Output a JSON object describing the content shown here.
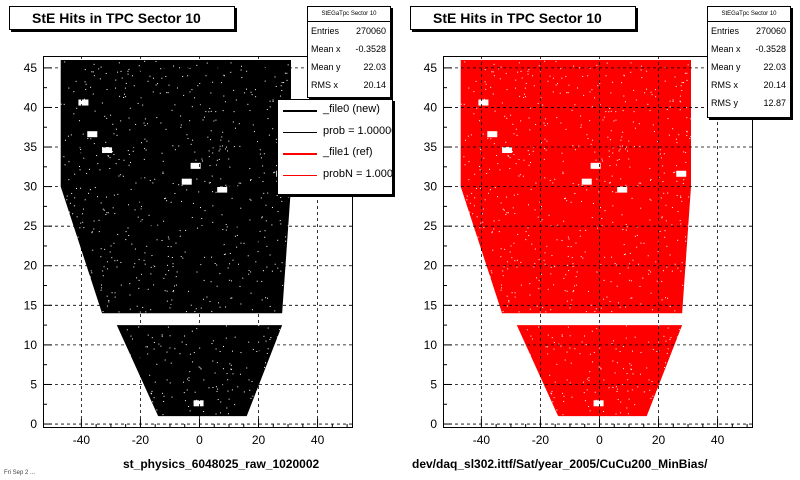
{
  "chart_data": [
    {
      "type": "scatter",
      "title": "StE Hits in TPC Sector 10",
      "xlabel": "st_physics_6048025_raw_1020002",
      "ylabel": "",
      "xlim": [
        -53,
        52
      ],
      "ylim": [
        -0.5,
        46.5
      ],
      "x_ticks": [
        -40,
        -20,
        0,
        20,
        40
      ],
      "y_ticks": [
        0,
        5,
        10,
        15,
        20,
        25,
        30,
        35,
        40,
        45
      ],
      "grid": true,
      "marker_color": "#000000",
      "stats": {
        "header": "StEGaTpc Sector 10",
        "rows": [
          {
            "key": "Entries",
            "value": "270060"
          },
          {
            "key": "Mean x",
            "value": "-0.3528"
          },
          {
            "key": "Mean y",
            "value": "22.03"
          },
          {
            "key": "RMS x",
            "value": "20.14"
          }
        ]
      },
      "legend": {
        "placement": "top-right",
        "entries": [
          {
            "label": "_file0 (new)",
            "color": "#000000"
          },
          {
            "label": "prob = 1.000000",
            "color": "#000000"
          },
          {
            "label": "_file1 (ref)",
            "color": "#ff0000"
          },
          {
            "label": "probN = 1.000000",
            "color": "#ff0000"
          }
        ]
      }
    },
    {
      "type": "scatter",
      "title": "StE Hits in TPC Sector 10",
      "xlabel": "dev/daq_sl302.ittf/Sat/year_2005/CuCu200_MinBias/",
      "ylabel": "",
      "xlim": [
        -53,
        52
      ],
      "ylim": [
        -0.5,
        46.5
      ],
      "x_ticks": [
        -40,
        -20,
        0,
        20,
        40
      ],
      "y_ticks": [
        0,
        5,
        10,
        15,
        20,
        25,
        30,
        35,
        40,
        45
      ],
      "grid": true,
      "marker_color": "#ff0000",
      "stats": {
        "header": "StEGaTpc Sector 10",
        "rows": [
          {
            "key": "Entries",
            "value": "270060"
          },
          {
            "key": "Mean x",
            "value": "-0.3528"
          },
          {
            "key": "Mean y",
            "value": "22.03"
          },
          {
            "key": "RMS x",
            "value": "20.14"
          },
          {
            "key": "RMS y",
            "value": "12.87"
          }
        ]
      }
    }
  ],
  "footer_stamp": "Fri Sep  2 ..."
}
